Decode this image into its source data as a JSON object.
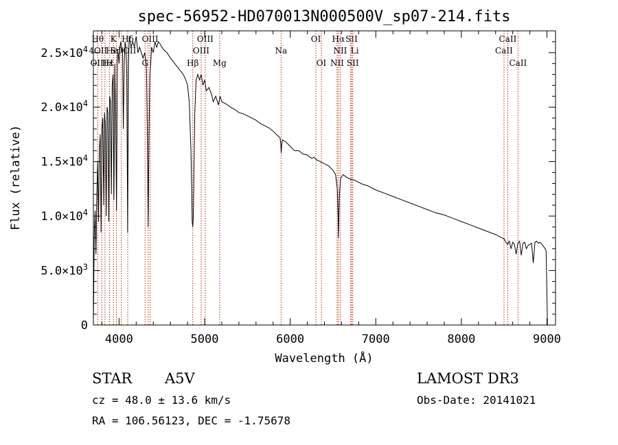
{
  "chart_data": {
    "type": "line",
    "title": "spec-56952-HD070013N000500V_sp07-214.fits",
    "xlabel": "Wavelength (Å)",
    "ylabel": "Flux (relative)",
    "xlim": [
      3700,
      9100
    ],
    "ylim": [
      0,
      27000
    ],
    "x_ticks": [
      4000,
      5000,
      6000,
      7000,
      8000,
      9000
    ],
    "x_tick_labels": [
      "4000",
      "5000",
      "6000",
      "7000",
      "8000",
      "9000"
    ],
    "y_ticks": [
      0,
      5000,
      10000,
      15000,
      20000,
      25000
    ],
    "y_tick_labels": [
      {
        "mant": "0",
        "exp": ""
      },
      {
        "mant": "5.0×10",
        "exp": "3"
      },
      {
        "mant": "1.0×10",
        "exp": "4"
      },
      {
        "mant": "1.5×10",
        "exp": "4"
      },
      {
        "mant": "2.0×10",
        "exp": "4"
      },
      {
        "mant": "2.5×10",
        "exp": "4"
      }
    ],
    "series": [
      {
        "name": "flux",
        "x": [
          3700,
          3710,
          3720,
          3730,
          3740,
          3750,
          3760,
          3770,
          3780,
          3790,
          3800,
          3810,
          3820,
          3830,
          3840,
          3850,
          3860,
          3870,
          3880,
          3890,
          3900,
          3910,
          3920,
          3930,
          3940,
          3950,
          3960,
          3970,
          3980,
          3990,
          4000,
          4010,
          4020,
          4030,
          4040,
          4050,
          4060,
          4070,
          4080,
          4090,
          4100,
          4110,
          4120,
          4130,
          4140,
          4160,
          4180,
          4200,
          4220,
          4240,
          4260,
          4280,
          4300,
          4310,
          4320,
          4330,
          4340,
          4350,
          4360,
          4370,
          4380,
          4400,
          4420,
          4440,
          4460,
          4480,
          4500,
          4530,
          4560,
          4600,
          4650,
          4700,
          4750,
          4780,
          4800,
          4820,
          4840,
          4850,
          4855,
          4861,
          4868,
          4875,
          4885,
          4900,
          4920,
          4940,
          4960,
          4980,
          5000,
          5020,
          5050,
          5080,
          5100,
          5130,
          5160,
          5180,
          5200,
          5250,
          5300,
          5350,
          5400,
          5450,
          5500,
          5550,
          5600,
          5650,
          5700,
          5750,
          5800,
          5850,
          5880,
          5890,
          5895,
          5900,
          5910,
          5950,
          6000,
          6050,
          6100,
          6150,
          6200,
          6250,
          6280,
          6300,
          6350,
          6400,
          6450,
          6500,
          6530,
          6550,
          6560,
          6563,
          6566,
          6575,
          6590,
          6620,
          6650,
          6700,
          6750,
          6800,
          6850,
          6900,
          6950,
          7000,
          7100,
          7200,
          7300,
          7400,
          7500,
          7600,
          7700,
          7800,
          7900,
          8000,
          8100,
          8200,
          8300,
          8400,
          8450,
          8500,
          8520,
          8540,
          8560,
          8580,
          8600,
          8620,
          8640,
          8660,
          8680,
          8700,
          8720,
          8740,
          8760,
          8780,
          8800,
          8820,
          8840,
          8860,
          8880,
          8900,
          8920,
          8940,
          8960,
          8980,
          8990,
          9000,
          9005
        ],
        "y": [
          0,
          8000,
          10500,
          6500,
          12000,
          15000,
          9500,
          16000,
          17500,
          8500,
          18000,
          19000,
          11000,
          19500,
          18500,
          10000,
          20000,
          19500,
          9500,
          21000,
          20500,
          12000,
          22000,
          23000,
          11500,
          24000,
          19000,
          10500,
          24500,
          25000,
          24000,
          25500,
          26000,
          25000,
          25500,
          18000,
          24000,
          26000,
          25500,
          23000,
          8500,
          24000,
          26500,
          26000,
          25500,
          26000,
          25500,
          26500,
          25000,
          25500,
          25000,
          24500,
          25000,
          24500,
          23500,
          18000,
          9000,
          17500,
          23000,
          24000,
          25500,
          25000,
          26000,
          25500,
          26000,
          25800,
          25500,
          25200,
          25000,
          24500,
          24000,
          23500,
          23000,
          22500,
          22000,
          20500,
          16000,
          12000,
          9500,
          9000,
          10000,
          14000,
          19500,
          22500,
          23000,
          22500,
          23000,
          22000,
          22500,
          21500,
          21800,
          21200,
          20500,
          21000,
          20200,
          21000,
          20500,
          20300,
          20000,
          19800,
          19500,
          19400,
          19200,
          19000,
          18800,
          18500,
          18300,
          18100,
          17800,
          17400,
          17200,
          16600,
          15800,
          16500,
          17000,
          16800,
          16400,
          16000,
          16000,
          15700,
          15600,
          15300,
          15400,
          15200,
          15000,
          14800,
          14600,
          14200,
          13800,
          12500,
          10000,
          8000,
          9000,
          12000,
          13500,
          13800,
          13600,
          13400,
          13300,
          13100,
          12900,
          12800,
          12600,
          12400,
          12100,
          11800,
          11500,
          11200,
          10900,
          10600,
          10300,
          10100,
          9800,
          9500,
          9200,
          8900,
          8600,
          8300,
          8100,
          7900,
          7600,
          7400,
          7700,
          7000,
          7600,
          7400,
          6500,
          7500,
          7700,
          6400,
          7500,
          7600,
          7000,
          7300,
          7400,
          7500,
          5700,
          7600,
          7700,
          7500,
          7600,
          7400,
          7200,
          7000,
          6800,
          3000,
          0
        ]
      }
    ],
    "line_markers": [
      {
        "wl": 3750,
        "label": "Hθ",
        "row": 1,
        "anchor": "middle"
      },
      {
        "wl": 3798,
        "label": "",
        "row": 0,
        "anchor": "middle"
      },
      {
        "wl": 3835,
        "label": "",
        "row": 0,
        "anchor": "middle"
      },
      {
        "wl": 3889,
        "label": "",
        "row": 0,
        "anchor": "middle"
      },
      {
        "wl": 3934,
        "label": "K",
        "row": 1,
        "anchor": "middle"
      },
      {
        "wl": 3969,
        "label": "",
        "row": 0,
        "anchor": "middle"
      },
      {
        "wl": 4026,
        "label": "HeI",
        "row": 2,
        "anchor": "end"
      },
      {
        "wl": 4101,
        "label": "Hδ",
        "row": 1,
        "anchor": "middle"
      },
      {
        "wl": 4304,
        "label": "G",
        "row": 3,
        "anchor": "middle"
      },
      {
        "wl": 4340,
        "label": "",
        "row": 0,
        "anchor": "middle"
      },
      {
        "wl": 4363,
        "label": "OIII",
        "row": 1,
        "anchor": "middle"
      },
      {
        "wl": 4861,
        "label": "Hβ",
        "row": 3,
        "anchor": "middle"
      },
      {
        "wl": 4959,
        "label": "OIII",
        "row": 2,
        "anchor": "middle"
      },
      {
        "wl": 5007,
        "label": "OIII",
        "row": 1,
        "anchor": "middle"
      },
      {
        "wl": 5175,
        "label": "Mg",
        "row": 3,
        "anchor": "middle"
      },
      {
        "wl": 5893,
        "label": "Na",
        "row": 2,
        "anchor": "middle"
      },
      {
        "wl": 6300,
        "label": "OI",
        "row": 1,
        "anchor": "middle"
      },
      {
        "wl": 6364,
        "label": "OI",
        "row": 3,
        "anchor": "middle"
      },
      {
        "wl": 6548,
        "label": "NII",
        "row": 3,
        "anchor": "middle"
      },
      {
        "wl": 6563,
        "label": "Hα",
        "row": 1,
        "anchor": "middle"
      },
      {
        "wl": 6584,
        "label": "NII",
        "row": 2,
        "anchor": "middle"
      },
      {
        "wl": 6707,
        "label": "Li",
        "row": 2,
        "anchor": "start"
      },
      {
        "wl": 6717,
        "label": "SII",
        "row": 1,
        "anchor": "middle"
      },
      {
        "wl": 6731,
        "label": "SII",
        "row": 3,
        "anchor": "middle"
      },
      {
        "wl": 8498,
        "label": "CaII",
        "row": 2,
        "anchor": "middle"
      },
      {
        "wl": 8542,
        "label": "CaII",
        "row": 1,
        "anchor": "middle"
      },
      {
        "wl": 8662,
        "label": "CaII",
        "row": 3,
        "anchor": "middle"
      }
    ],
    "overlap_labels": [
      "4OII",
      "OIII",
      "Hε",
      "H",
      "Sr",
      "OII"
    ]
  },
  "info": {
    "object_class": "STAR",
    "subclass": "A5V",
    "survey": "LAMOST DR3",
    "cz": "cz = 48.0 ± 13.6 km/s",
    "obs_date": "Obs-Date: 20141021",
    "radec": "RA = 106.56123, DEC =  -1.75678"
  },
  "colors": {
    "line_marker": "#cc2200",
    "spectrum": "#000000",
    "frame": "#000000"
  }
}
